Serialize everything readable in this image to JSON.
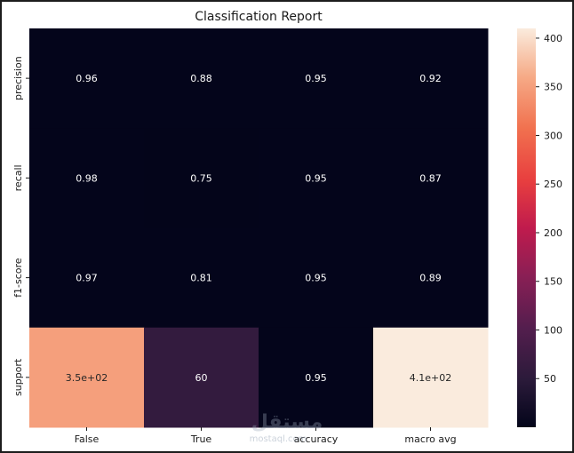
{
  "chart_data": {
    "type": "heatmap",
    "title": "Classification Report",
    "columns": [
      "False",
      "True",
      "accuracy",
      "macro avg"
    ],
    "rows": [
      "precision",
      "recall",
      "f1-score",
      "support"
    ],
    "values": [
      [
        0.96,
        0.88,
        0.95,
        0.92
      ],
      [
        0.98,
        0.75,
        0.95,
        0.87
      ],
      [
        0.97,
        0.81,
        0.95,
        0.89
      ],
      [
        350,
        60,
        0.95,
        410
      ]
    ],
    "annotations": [
      [
        "0.96",
        "0.88",
        "0.95",
        "0.92"
      ],
      [
        "0.98",
        "0.75",
        "0.95",
        "0.87"
      ],
      [
        "0.97",
        "0.81",
        "0.95",
        "0.89"
      ],
      [
        "3.5e+02",
        "60",
        "0.95",
        "4.1e+02"
      ]
    ],
    "colorbar": {
      "min": 0,
      "max": 410,
      "ticks": [
        50,
        100,
        150,
        200,
        250,
        300,
        350,
        400
      ],
      "colormap": "rocket"
    }
  },
  "watermark": {
    "text": "مستقل",
    "subtext": "mostaql.com"
  }
}
